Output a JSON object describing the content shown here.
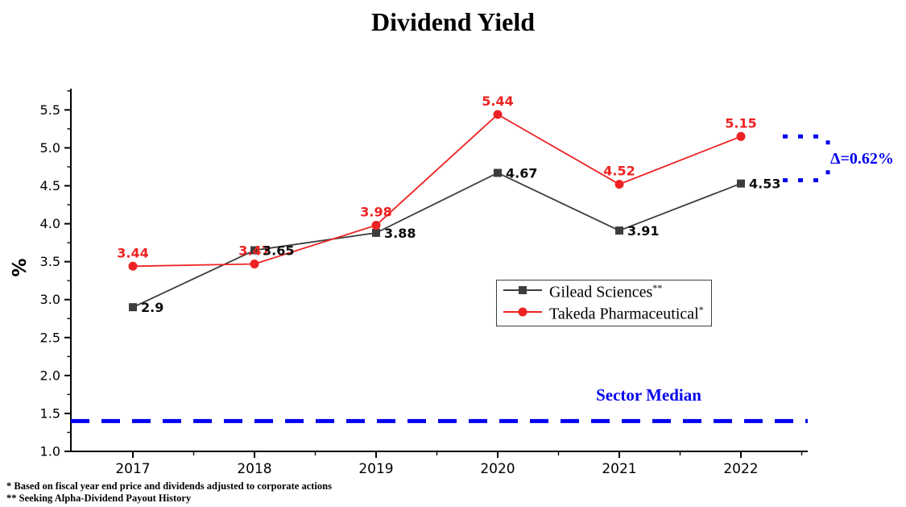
{
  "chart_data": {
    "type": "line",
    "title": "Dividend Yield",
    "xlabel": "",
    "ylabel": "%",
    "categories": [
      "2017",
      "2018",
      "2019",
      "2020",
      "2021",
      "2022"
    ],
    "series": [
      {
        "name": "Gilead Sciences",
        "footnote_mark": "**",
        "color": "#3d3d3d",
        "label_color": "#0d0d0d",
        "marker": "square",
        "label_position": "right",
        "values": [
          2.9,
          3.65,
          3.88,
          4.67,
          3.91,
          4.53
        ]
      },
      {
        "name": "Takeda Pharmaceutical",
        "footnote_mark": "*",
        "color": "#ee2222",
        "label_color": "#ee2222",
        "marker": "circle",
        "label_position": "above",
        "values": [
          3.44,
          3.47,
          3.98,
          5.44,
          4.52,
          5.15
        ]
      }
    ],
    "y_ticks": [
      1.0,
      1.5,
      2.0,
      2.5,
      3.0,
      3.5,
      4.0,
      4.5,
      5.0,
      5.5
    ],
    "ylim": [
      1.0,
      5.78
    ],
    "grid": false,
    "legend_position": "center-right",
    "reference_line": {
      "label": "Sector Median",
      "value": 1.4,
      "color": "#0000ee"
    },
    "annotation": {
      "label": "Δ=0.62%",
      "color": "#0000ee",
      "between_values": [
        5.15,
        4.53
      ]
    }
  },
  "footnotes": {
    "line1": "* Based on fiscal year end price and dividends adjusted to corporate actions",
    "line2": "** Seeking Alpha-Dividend Payout History"
  }
}
